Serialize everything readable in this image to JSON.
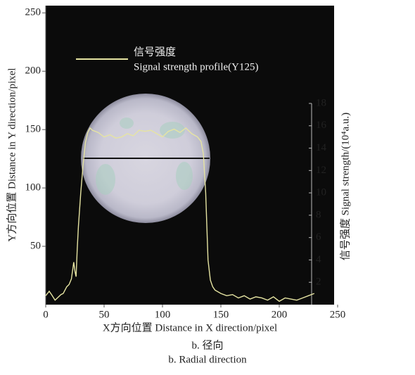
{
  "chart_data": {
    "type": "line",
    "x_label": "X方向位置  Distance in X direction/pixel",
    "y_label": "Y方向位置  Distance in Y direction/pixel",
    "y2_label": "信号强度  Signal strength/(10⁴a.u.)",
    "legend_title": "信号强度",
    "x": [
      0,
      3,
      5,
      8,
      10,
      13,
      15,
      18,
      20,
      22,
      24,
      25,
      26,
      27,
      28,
      30,
      32,
      34,
      36,
      38,
      40,
      45,
      50,
      55,
      60,
      65,
      70,
      75,
      80,
      85,
      90,
      95,
      100,
      105,
      110,
      115,
      120,
      125,
      130,
      133,
      135,
      137,
      139,
      141,
      143,
      145,
      150,
      155,
      160,
      165,
      170,
      175,
      180,
      185,
      190,
      195,
      200,
      205,
      210,
      215,
      220,
      225,
      230
    ],
    "series": [
      {
        "name": "Signal strength profile(Y125)",
        "color": "#e6e4a2",
        "axis": "y2",
        "values": [
          0.8,
          1.2,
          0.9,
          0.4,
          0.6,
          0.9,
          1.0,
          1.6,
          1.8,
          2.3,
          3.8,
          3.0,
          2.5,
          5,
          7,
          10,
          12.5,
          14.5,
          15.4,
          15.8,
          15.6,
          15.4,
          15.0,
          15.2,
          14.9,
          15.0,
          15.3,
          15.1,
          15.6,
          15.5,
          15.6,
          15.3,
          15.0,
          15.5,
          15.7,
          15.4,
          15.8,
          15.3,
          15.0,
          14.6,
          13.5,
          10,
          4,
          2.2,
          1.6,
          1.3,
          1.0,
          0.8,
          0.9,
          0.6,
          0.8,
          0.5,
          0.7,
          0.6,
          0.4,
          0.7,
          0.3,
          0.6,
          0.5,
          0.4,
          0.6,
          0.8,
          1.0
        ]
      }
    ],
    "xlim": [
      0,
      250
    ],
    "xticks": [
      0,
      50,
      100,
      150,
      200,
      250
    ],
    "ylim": [
      0,
      255
    ],
    "yticks": [
      50,
      100,
      150,
      200,
      250
    ],
    "y2lim": [
      0,
      18
    ],
    "y2ticks": [
      2,
      4,
      6,
      8,
      10,
      12,
      14,
      16,
      18
    ]
  },
  "caption": [
    "b.  径向",
    "b. Radial direction"
  ]
}
